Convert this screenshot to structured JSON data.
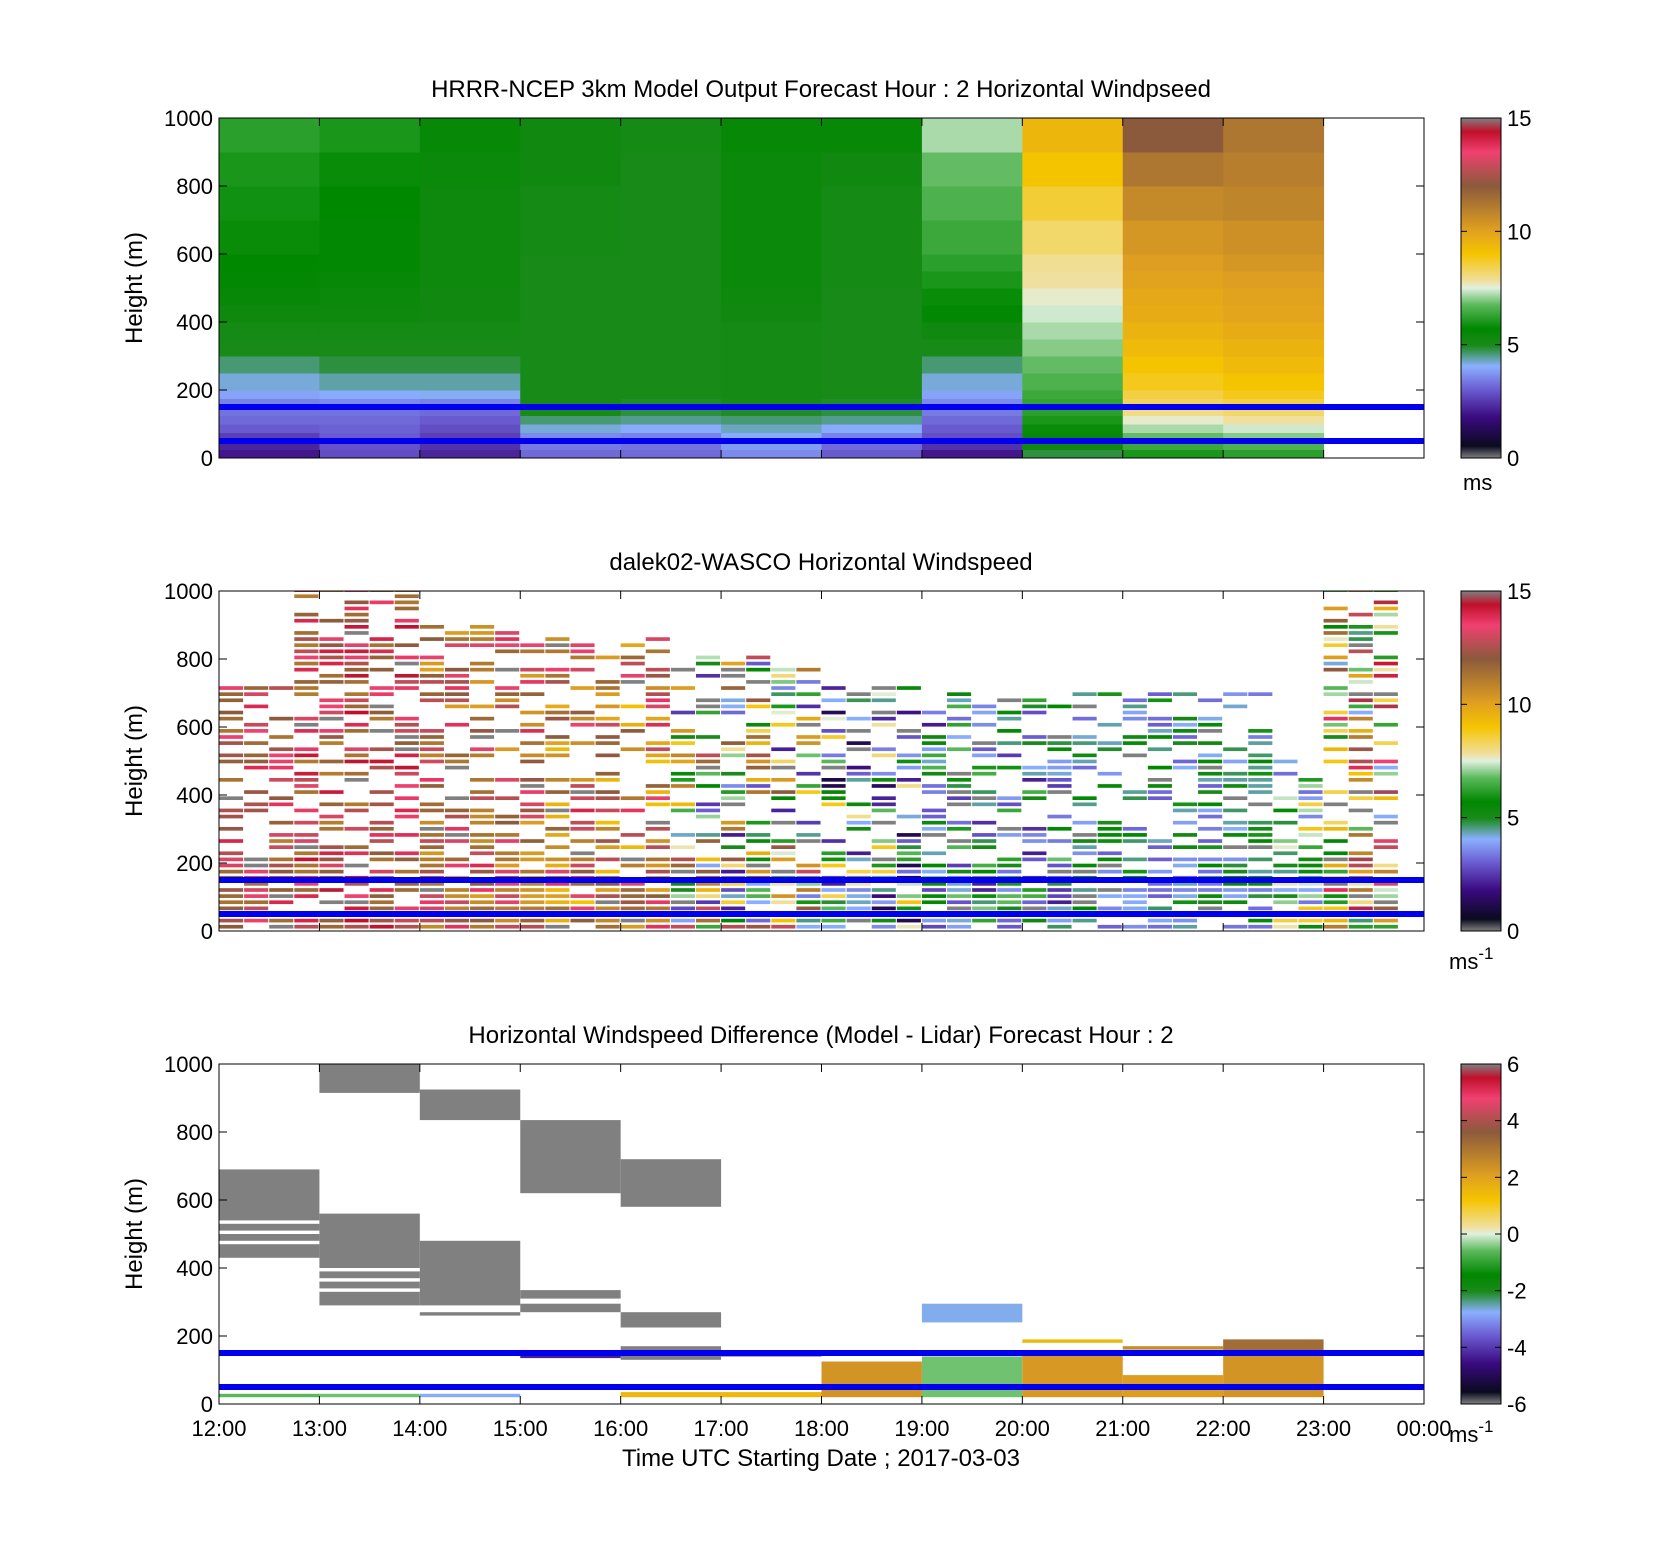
{
  "figure": {
    "xlabel": "Time UTC  Starting Date ; 2017-03-03",
    "x_ticks": [
      "12:00",
      "13:00",
      "14:00",
      "15:00",
      "16:00",
      "17:00",
      "18:00",
      "19:00",
      "20:00",
      "21:00",
      "22:00",
      "23:00",
      "00:00"
    ]
  },
  "colors": {
    "reference_lines": "#0000ee",
    "frame": "#000000",
    "speed_scale": [
      [
        0.0,
        "#808080"
      ],
      [
        0.035,
        "#0a0a1e"
      ],
      [
        0.12,
        "#3a0a80"
      ],
      [
        0.2,
        "#6a5ad0"
      ],
      [
        0.27,
        "#8ab0ff"
      ],
      [
        0.33,
        "#1a8a1a"
      ],
      [
        0.38,
        "#008800"
      ],
      [
        0.45,
        "#5ab85a"
      ],
      [
        0.5,
        "#e0f0e0"
      ],
      [
        0.52,
        "#f0e0a0"
      ],
      [
        0.6,
        "#f5c400"
      ],
      [
        0.67,
        "#e0a020"
      ],
      [
        0.8,
        "#8b5a3c"
      ],
      [
        0.9,
        "#f04070"
      ],
      [
        0.96,
        "#c0102a"
      ],
      [
        1.0,
        "#808080"
      ]
    ],
    "diff_scale": [
      [
        0.0,
        "#808080"
      ],
      [
        0.035,
        "#0a0a1e"
      ],
      [
        0.12,
        "#3a0a80"
      ],
      [
        0.2,
        "#6a5ad0"
      ],
      [
        0.27,
        "#8ab0ff"
      ],
      [
        0.33,
        "#1a8a1a"
      ],
      [
        0.38,
        "#008800"
      ],
      [
        0.45,
        "#5ab85a"
      ],
      [
        0.5,
        "#e0f0e0"
      ],
      [
        0.52,
        "#f0e0a0"
      ],
      [
        0.6,
        "#f5c400"
      ],
      [
        0.67,
        "#e0a020"
      ],
      [
        0.8,
        "#8b5a3c"
      ],
      [
        0.9,
        "#f04070"
      ],
      [
        0.96,
        "#c0102a"
      ],
      [
        1.0,
        "#808080"
      ]
    ]
  },
  "chart_data": [
    {
      "type": "heatmap",
      "title": "HRRR-NCEP 3km Model Output   Forecast Hour : 2 Horizontal Windpseed",
      "xlabel": "",
      "ylabel": "Height (m)",
      "xlim": [
        12,
        24
      ],
      "ylim": [
        0,
        1000
      ],
      "y_ticks": [
        "0",
        "200",
        "400",
        "600",
        "800",
        "1000"
      ],
      "colorbar": {
        "range": [
          0,
          15
        ],
        "ticks": [
          "0",
          "5",
          "10",
          "15"
        ],
        "unit": "ms"
      },
      "reference_lines_m": [
        50,
        150
      ],
      "time_bins_hours": [
        12,
        13,
        14,
        15,
        16,
        17,
        18,
        19,
        20,
        21,
        22
      ],
      "height_bins_m": [
        0,
        25,
        50,
        75,
        100,
        125,
        150,
        175,
        200,
        250,
        300,
        350,
        400,
        450,
        500,
        550,
        600,
        700,
        800,
        900,
        1000
      ],
      "values_ms": [
        [
          2.0,
          2.8,
          2.2,
          3.2,
          3.2,
          3.6,
          3.0,
          2.0,
          4.8,
          6.0,
          6.2
        ],
        [
          2.2,
          2.9,
          2.4,
          3.4,
          3.3,
          3.8,
          3.2,
          2.4,
          5.2,
          6.4,
          6.6
        ],
        [
          2.6,
          3.0,
          2.6,
          3.6,
          3.5,
          4.0,
          3.5,
          2.8,
          5.5,
          6.8,
          7.0
        ],
        [
          3.0,
          3.1,
          2.8,
          4.2,
          4.0,
          4.3,
          4.0,
          3.0,
          5.8,
          7.2,
          7.4
        ],
        [
          3.2,
          3.2,
          3.0,
          4.6,
          4.5,
          4.6,
          4.5,
          3.2,
          6.0,
          7.6,
          7.8
        ],
        [
          3.3,
          3.3,
          3.2,
          5.0,
          4.8,
          4.9,
          4.8,
          3.4,
          6.2,
          8.0,
          8.2
        ],
        [
          3.5,
          3.6,
          3.5,
          5.0,
          4.9,
          5.0,
          4.9,
          3.6,
          6.3,
          8.3,
          8.5
        ],
        [
          3.9,
          4.0,
          4.1,
          5.0,
          5.0,
          5.1,
          5.0,
          3.9,
          6.4,
          8.5,
          8.8
        ],
        [
          4.2,
          4.4,
          4.4,
          5.0,
          5.0,
          5.1,
          5.0,
          4.2,
          6.6,
          8.8,
          9.0
        ],
        [
          4.6,
          4.8,
          4.8,
          5.0,
          5.0,
          5.1,
          5.0,
          4.6,
          6.8,
          9.0,
          9.3
        ],
        [
          5.0,
          5.0,
          5.0,
          5.0,
          5.0,
          5.1,
          5.0,
          5.0,
          7.0,
          9.3,
          9.5
        ],
        [
          5.1,
          5.1,
          5.1,
          5.0,
          5.0,
          5.1,
          5.0,
          5.2,
          7.2,
          9.5,
          9.7
        ],
        [
          5.3,
          5.3,
          5.2,
          5.0,
          5.0,
          5.2,
          5.0,
          5.6,
          7.4,
          9.7,
          9.9
        ],
        [
          5.5,
          5.4,
          5.2,
          5.0,
          5.0,
          5.3,
          5.0,
          5.8,
          7.6,
          9.8,
          10.0
        ],
        [
          5.6,
          5.5,
          5.3,
          5.0,
          5.0,
          5.4,
          5.1,
          6.0,
          7.8,
          10.0,
          10.1
        ],
        [
          5.7,
          5.6,
          5.3,
          5.0,
          5.0,
          5.4,
          5.1,
          6.2,
          7.9,
          10.1,
          10.3
        ],
        [
          5.8,
          5.6,
          5.3,
          5.1,
          5.0,
          5.4,
          5.1,
          6.4,
          8.2,
          10.3,
          10.5
        ],
        [
          5.9,
          5.7,
          5.3,
          5.1,
          5.0,
          5.4,
          5.1,
          6.6,
          8.6,
          10.7,
          10.8
        ],
        [
          6.0,
          5.8,
          5.4,
          5.2,
          5.0,
          5.4,
          5.2,
          6.8,
          9.0,
          11.2,
          11.0
        ],
        [
          6.2,
          6.0,
          5.5,
          5.2,
          5.1,
          5.5,
          5.5,
          7.2,
          9.4,
          12.0,
          11.2
        ]
      ]
    },
    {
      "type": "heatmap",
      "title": "dalek02-WASCO  Horizontal Windspeed",
      "xlabel": "",
      "ylabel": "Height (m)",
      "xlim": [
        12,
        24
      ],
      "ylim": [
        0,
        1000
      ],
      "y_ticks": [
        "0",
        "200",
        "400",
        "600",
        "800",
        "1000"
      ],
      "colorbar": {
        "range": [
          0,
          15
        ],
        "ticks": [
          "0",
          "5",
          "10",
          "15"
        ],
        "unit": "ms",
        "unit_exponent": "-1"
      },
      "reference_lines_m": [
        50,
        150
      ],
      "scan_interval_minutes": 15,
      "gate_spacing_m": 18,
      "notes": "sparse observations: values shown where returns exist; missing gates are blank",
      "observed_regions": [
        {
          "t": [
            12.0,
            12.75
          ],
          "z": [
            0,
            720
          ],
          "speed_ms": [
            11,
            14
          ]
        },
        {
          "t": [
            12.75,
            14.0
          ],
          "z": [
            0,
            1000
          ],
          "speed_ms": [
            11,
            14.5
          ]
        },
        {
          "t": [
            14.0,
            15.25
          ],
          "z": [
            0,
            900
          ],
          "speed_ms": [
            10,
            14
          ]
        },
        {
          "t": [
            15.25,
            16.5
          ],
          "z": [
            0,
            860
          ],
          "speed_ms": [
            9,
            14
          ]
        },
        {
          "t": [
            16.5,
            18.0
          ],
          "z": [
            0,
            800
          ],
          "speed_ms": [
            2,
            13
          ]
        },
        {
          "t": [
            18.0,
            19.0
          ],
          "z": [
            0,
            720
          ],
          "speed_ms": [
            1,
            9
          ]
        },
        {
          "t": [
            19.0,
            20.5
          ],
          "z": [
            0,
            700
          ],
          "speed_ms": [
            2,
            7
          ]
        },
        {
          "t": [
            20.5,
            22.5
          ],
          "z": [
            0,
            700
          ],
          "speed_ms": [
            3,
            6
          ]
        },
        {
          "t": [
            22.5,
            23.0
          ],
          "z": [
            0,
            500
          ],
          "speed_ms": [
            3,
            9
          ]
        },
        {
          "t": [
            23.0,
            23.75
          ],
          "z": [
            0,
            1000
          ],
          "speed_ms": [
            4,
            15
          ]
        }
      ]
    },
    {
      "type": "heatmap",
      "title": "Horizontal Windspeed Difference (Model - Lidar) Forecast Hour : 2",
      "xlabel": "Time UTC  Starting Date ; 2017-03-03",
      "ylabel": "Height (m)",
      "xlim": [
        12,
        24
      ],
      "ylim": [
        0,
        1000
      ],
      "y_ticks": [
        "0",
        "200",
        "400",
        "600",
        "800",
        "1000"
      ],
      "colorbar": {
        "range": [
          -6,
          6
        ],
        "ticks": [
          "-6",
          "-4",
          "-2",
          "0",
          "2",
          "4",
          "6"
        ],
        "unit": "ms",
        "unit_exponent": "-1"
      },
      "reference_lines_m": [
        50,
        150
      ],
      "cells": [
        {
          "t0": 12,
          "t1": 13,
          "z0": 430,
          "z1": 470,
          "value": -6.5
        },
        {
          "t0": 12,
          "t1": 13,
          "z0": 480,
          "z1": 500,
          "value": -6.5
        },
        {
          "t0": 12,
          "t1": 13,
          "z0": 510,
          "z1": 530,
          "value": -6.5
        },
        {
          "t0": 12,
          "t1": 13,
          "z0": 540,
          "z1": 690,
          "value": -6.5
        },
        {
          "t0": 12,
          "t1": 13,
          "z0": 20,
          "z1": 30,
          "value": -0.6
        },
        {
          "t0": 13,
          "t1": 14,
          "z0": 290,
          "z1": 330,
          "value": -6.5
        },
        {
          "t0": 13,
          "t1": 14,
          "z0": 340,
          "z1": 360,
          "value": -6.5
        },
        {
          "t0": 13,
          "t1": 14,
          "z0": 370,
          "z1": 390,
          "value": -6.5
        },
        {
          "t0": 13,
          "t1": 14,
          "z0": 400,
          "z1": 560,
          "value": -6.5
        },
        {
          "t0": 13,
          "t1": 14,
          "z0": 915,
          "z1": 1000,
          "value": -6.5
        },
        {
          "t0": 13,
          "t1": 14,
          "z0": 20,
          "z1": 30,
          "value": -0.5
        },
        {
          "t0": 14,
          "t1": 15,
          "z0": 260,
          "z1": 270,
          "value": -6.5
        },
        {
          "t0": 14,
          "t1": 15,
          "z0": 290,
          "z1": 480,
          "value": -6.5
        },
        {
          "t0": 14,
          "t1": 15,
          "z0": 835,
          "z1": 925,
          "value": -6.5
        },
        {
          "t0": 14,
          "t1": 15,
          "z0": 20,
          "z1": 30,
          "value": -2.8
        },
        {
          "t0": 15,
          "t1": 16,
          "z0": 135,
          "z1": 150,
          "value": -4.3
        },
        {
          "t0": 15,
          "t1": 16,
          "z0": 270,
          "z1": 295,
          "value": -6.5
        },
        {
          "t0": 15,
          "t1": 16,
          "z0": 310,
          "z1": 335,
          "value": -6.5
        },
        {
          "t0": 15,
          "t1": 16,
          "z0": 620,
          "z1": 835,
          "value": -6.5
        },
        {
          "t0": 16,
          "t1": 17,
          "z0": 20,
          "z1": 35,
          "value": 1.5
        },
        {
          "t0": 16,
          "t1": 17,
          "z0": 130,
          "z1": 145,
          "value": -6.5
        },
        {
          "t0": 16,
          "t1": 17,
          "z0": 155,
          "z1": 170,
          "value": -6.5
        },
        {
          "t0": 16,
          "t1": 17,
          "z0": 225,
          "z1": 270,
          "value": -6.5
        },
        {
          "t0": 16,
          "t1": 17,
          "z0": 580,
          "z1": 720,
          "value": -6.5
        },
        {
          "t0": 17,
          "t1": 18,
          "z0": 20,
          "z1": 35,
          "value": 1.5
        },
        {
          "t0": 17,
          "t1": 18,
          "z0": 140,
          "z1": 152,
          "value": -4.5
        },
        {
          "t0": 18,
          "t1": 19,
          "z0": 20,
          "z1": 125,
          "value": 2.3
        },
        {
          "t0": 19,
          "t1": 20,
          "z0": 20,
          "z1": 140,
          "value": -0.5
        },
        {
          "t0": 19,
          "t1": 20,
          "z0": 240,
          "z1": 295,
          "value": -2.7
        },
        {
          "t0": 20,
          "t1": 21,
          "z0": 20,
          "z1": 150,
          "value": 2.2
        },
        {
          "t0": 20,
          "t1": 21,
          "z0": 180,
          "z1": 190,
          "value": 1.5
        },
        {
          "t0": 21,
          "t1": 22,
          "z0": 20,
          "z1": 85,
          "value": 2.1
        },
        {
          "t0": 21,
          "t1": 22,
          "z0": 160,
          "z1": 170,
          "value": 2.5
        },
        {
          "t0": 22,
          "t1": 23,
          "z0": 20,
          "z1": 150,
          "value": 2.3
        },
        {
          "t0": 22,
          "t1": 23,
          "z0": 150,
          "z1": 190,
          "value": 3.2
        }
      ]
    }
  ]
}
